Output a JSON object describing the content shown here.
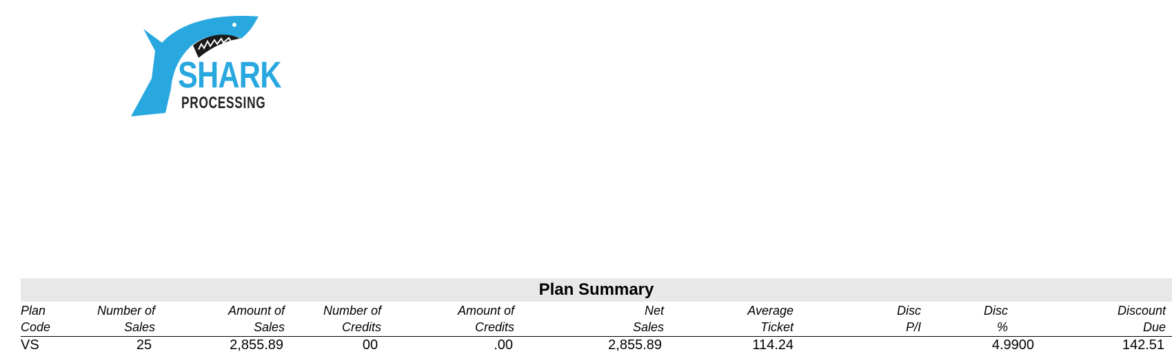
{
  "logo": {
    "name": "SHARK",
    "tagline": "PROCESSING"
  },
  "plan_summary": {
    "title": "Plan Summary",
    "columns": [
      [
        "Plan",
        "Code"
      ],
      [
        "Number of",
        "Sales"
      ],
      [
        "Amount of",
        "Sales"
      ],
      [
        "Number of",
        "Credits"
      ],
      [
        "Amount of",
        "Credits"
      ],
      [
        "Net",
        "Sales"
      ],
      [
        "Average",
        "Ticket"
      ],
      [
        "Disc",
        "P/I"
      ],
      [
        "Disc",
        "%"
      ],
      [
        "Discount",
        "Due"
      ]
    ],
    "rows": [
      [
        "VS",
        "25",
        "2,855.89",
        "00",
        ".00",
        "2,855.89",
        "114.24",
        null,
        "4.9900",
        "142.51"
      ]
    ]
  }
}
